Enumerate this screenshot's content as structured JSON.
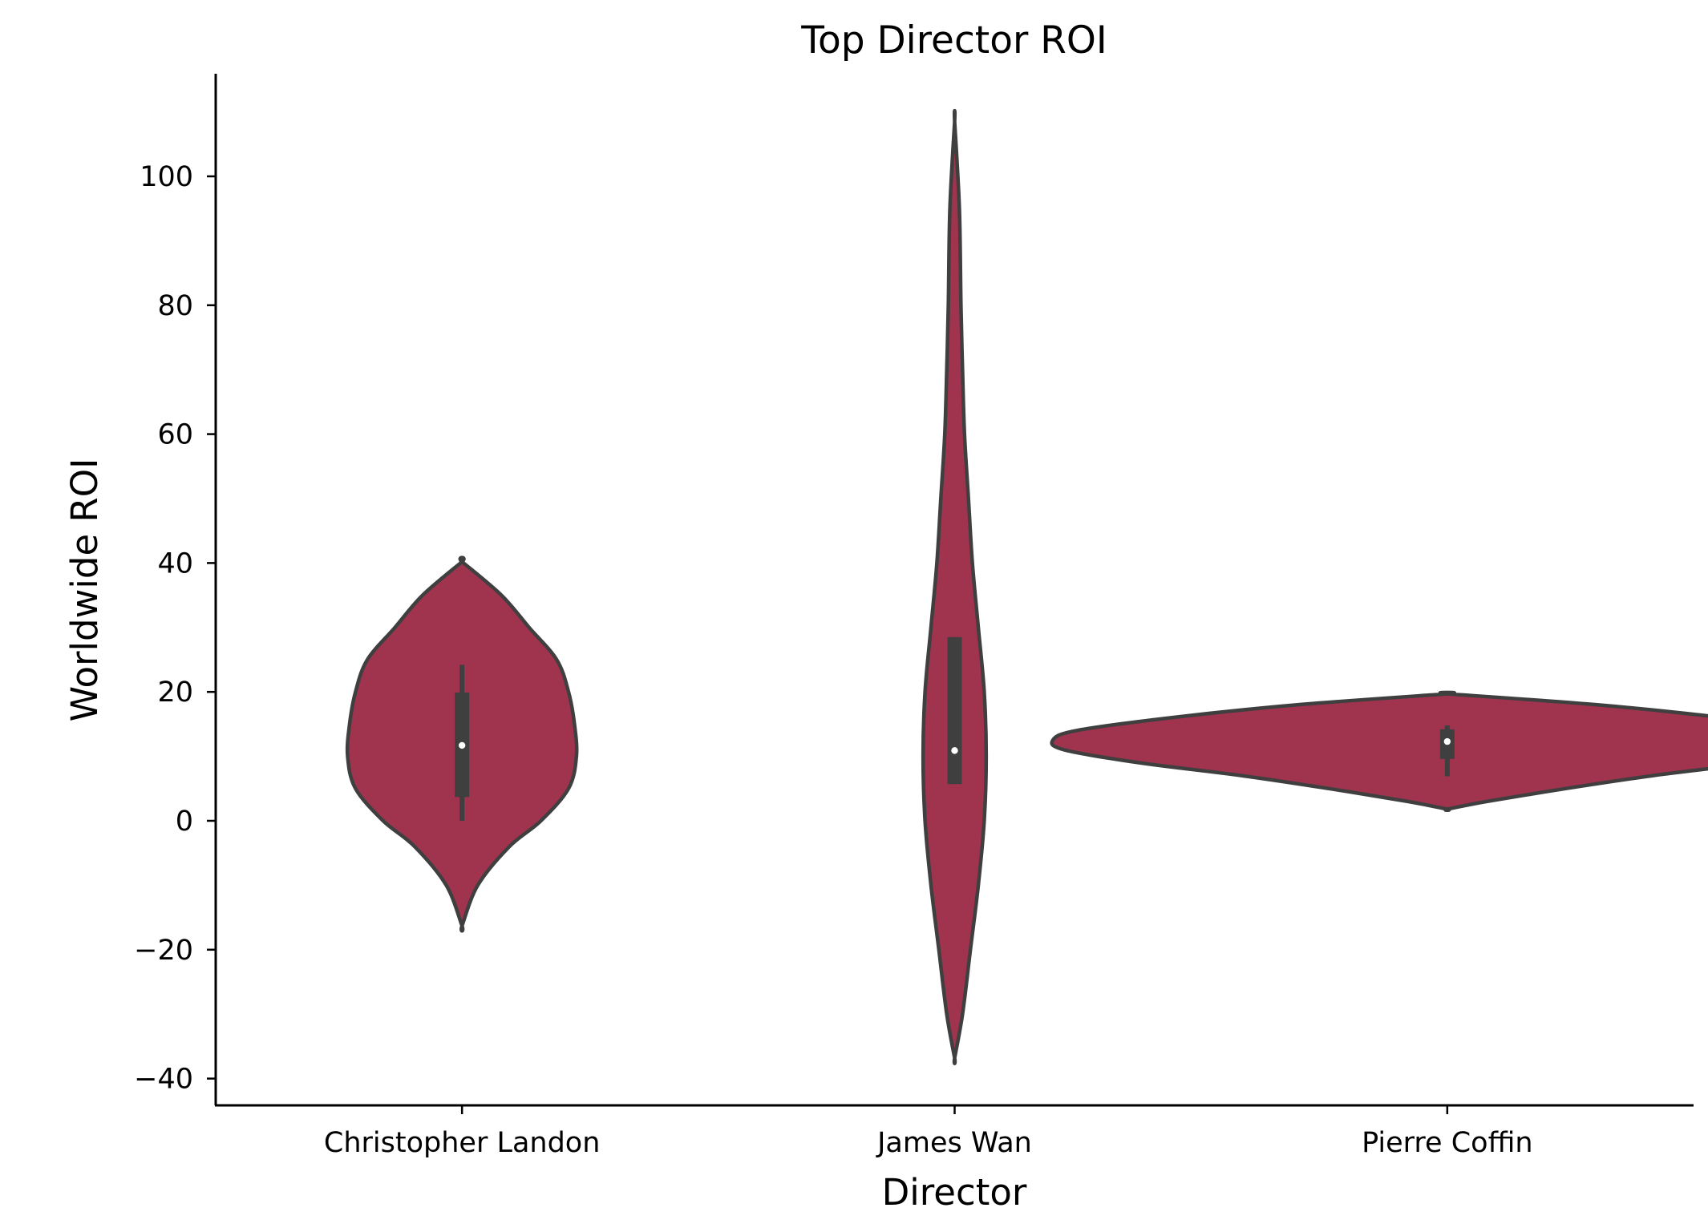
{
  "chart_data": {
    "type": "violin",
    "title": "Top Director ROI",
    "xlabel": "Director",
    "ylabel": "Worldwide ROI",
    "ylim": [
      -44,
      116
    ],
    "yticks": [
      -40,
      -20,
      0,
      20,
      40,
      60,
      80,
      100
    ],
    "ytick_labels": [
      "−40",
      "−20",
      "0",
      "20",
      "40",
      "60",
      "80",
      "100"
    ],
    "grid": false,
    "legend": "none",
    "colors": {
      "violin_fill": "#a0344f",
      "outline": "#3f3f3f",
      "median": "#ffffff",
      "axis": "#000000"
    },
    "categories": [
      "Christopher Landon",
      "James Wan",
      "Pierre Coffin"
    ],
    "violins": [
      {
        "category": "Christopher Landon",
        "median": 11.7,
        "q1": 3.7,
        "q3": 19.9,
        "whisker_low": 0.0,
        "whisker_high": 24.2,
        "density": [
          [
            -16.3,
            0.0
          ],
          [
            -10,
            0.04
          ],
          [
            -4,
            0.12
          ],
          [
            0,
            0.2
          ],
          [
            5,
            0.27
          ],
          [
            10,
            0.29
          ],
          [
            15,
            0.285
          ],
          [
            20,
            0.27
          ],
          [
            25,
            0.24
          ],
          [
            30,
            0.17
          ],
          [
            35,
            0.1
          ],
          [
            40.2,
            0.0
          ]
        ]
      },
      {
        "category": "James Wan",
        "median": 10.9,
        "q1": 5.7,
        "q3": 28.5,
        "whisker_low": 5.7,
        "whisker_high": 28.5,
        "density": [
          [
            -36.8,
            0.0
          ],
          [
            -30,
            0.02
          ],
          [
            -20,
            0.04
          ],
          [
            -10,
            0.06
          ],
          [
            0,
            0.075
          ],
          [
            10,
            0.08
          ],
          [
            20,
            0.075
          ],
          [
            30,
            0.06
          ],
          [
            40,
            0.045
          ],
          [
            50,
            0.035
          ],
          [
            60,
            0.025
          ],
          [
            70,
            0.02
          ],
          [
            80,
            0.016
          ],
          [
            95,
            0.012
          ],
          [
            108.5,
            0.0
          ]
        ]
      },
      {
        "category": "Pierre Coffin",
        "median": 12.3,
        "q1": 9.6,
        "q3": 14.2,
        "whisker_low": 6.9,
        "whisker_high": 14.8,
        "density": [
          [
            1.8,
            0.0
          ],
          [
            3,
            0.1
          ],
          [
            5,
            0.3
          ],
          [
            7,
            0.52
          ],
          [
            9,
            0.78
          ],
          [
            11,
            0.97
          ],
          [
            12.5,
            1.0
          ],
          [
            14,
            0.94
          ],
          [
            16,
            0.7
          ],
          [
            18,
            0.38
          ],
          [
            19.7,
            0.0
          ]
        ]
      }
    ]
  }
}
